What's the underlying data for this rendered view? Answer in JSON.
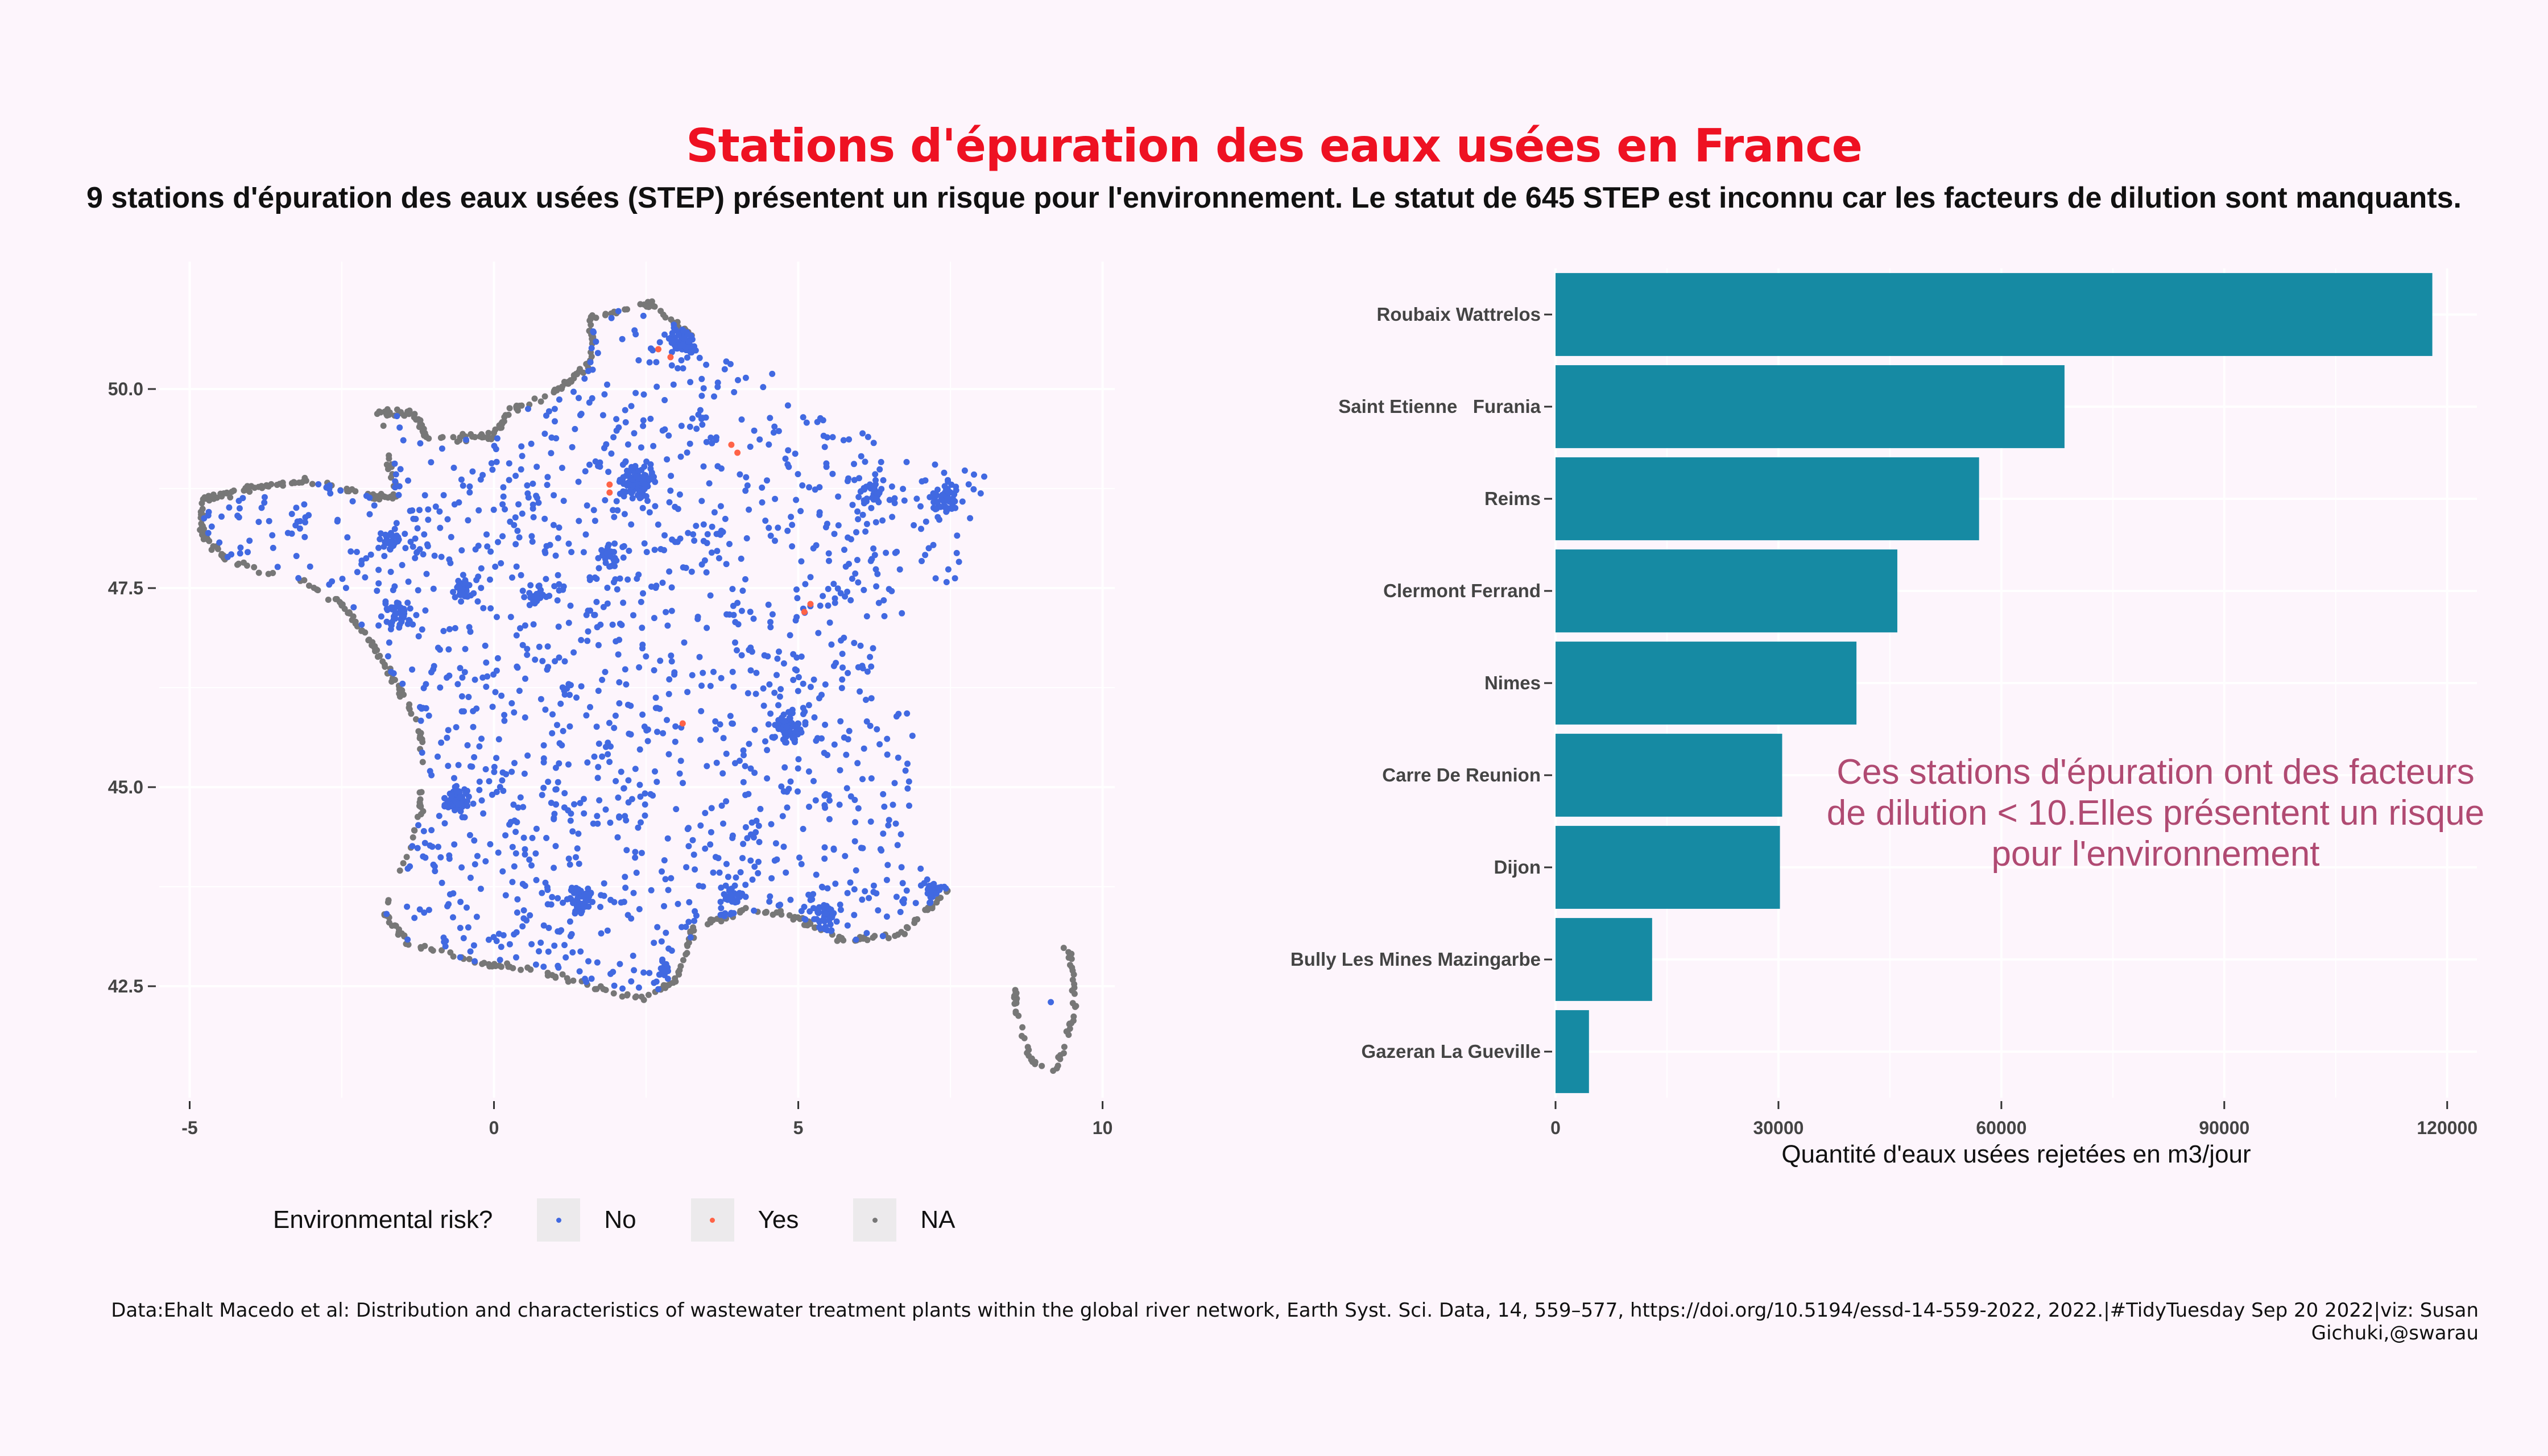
{
  "title": "Stations d'épuration des eaux usées en France",
  "subtitle": "9 stations d'épuration des eaux usées (STEP) présentent un risque pour l'environnement. Le statut de 645 STEP est inconnu car les facteurs de dilution sont manquants.",
  "caption": "Data:Ehalt Macedo et al: Distribution and characteristics of wastewater treatment plants within the global river network, Earth Syst. Sci. Data, 14, 559–577, https://doi.org/10.5194/essd-14-559-2022, 2022.|#TidyTuesday Sep 20 2022|viz: Susan Gichuki,@swarau",
  "colors": {
    "background": "#fdf5fc",
    "title": "#ee1122",
    "no": "#4169e1",
    "yes": "#ff6347",
    "na": "#777777",
    "bar": "#168aa3",
    "annotation": "#b04a72"
  },
  "legend": {
    "title": "Environmental risk?",
    "items": [
      {
        "label": "No",
        "color": "#4169e1"
      },
      {
        "label": "Yes",
        "color": "#ff6347"
      },
      {
        "label": "NA",
        "color": "#777777"
      }
    ]
  },
  "chart_data": [
    {
      "type": "scatter",
      "title": "",
      "xlabel": "",
      "ylabel": "",
      "xlim": [
        -5.5,
        10.2
      ],
      "ylim": [
        41.1,
        51.6
      ],
      "xticks": [
        "-5",
        "0",
        "5",
        "10"
      ],
      "yticks": [
        "42.5",
        "45.0",
        "47.5",
        "50.0"
      ],
      "grid": true,
      "legend_position": "bottom",
      "series": [
        {
          "name": "Yes",
          "points": [
            [
              2.7,
              50.5
            ],
            [
              3.9,
              49.3
            ],
            [
              1.9,
              48.8
            ],
            [
              5.2,
              47.3
            ],
            [
              3.1,
              45.8
            ],
            [
              1.9,
              48.7
            ],
            [
              2.9,
              50.4
            ],
            [
              4.0,
              49.2
            ],
            [
              5.1,
              47.2
            ]
          ]
        }
      ]
    },
    {
      "type": "bar",
      "orientation": "horizontal",
      "categories": [
        "Roubaix Wattrelos",
        "Saint Etienne   Furania",
        "Reims",
        "Clermont Ferrand",
        "Nimes",
        "Carre De Reunion",
        "Dijon",
        "Bully Les Mines Mazingarbe",
        "Gazeran La Gueville"
      ],
      "values": [
        118000,
        68500,
        57000,
        46000,
        40500,
        30500,
        30200,
        13000,
        4500
      ],
      "xlabel": "Quantité d'eaux usées rejetées en m3/jour",
      "ylabel": "",
      "xlim": [
        0,
        124000
      ],
      "xticks": [
        "0",
        "30000",
        "60000",
        "90000",
        "120000"
      ],
      "annotation": [
        "Ces stations d'épuration ont des facteurs",
        "de dilution < 10.Elles présentent un risque",
        "pour l'environnement"
      ],
      "grid": true
    }
  ]
}
